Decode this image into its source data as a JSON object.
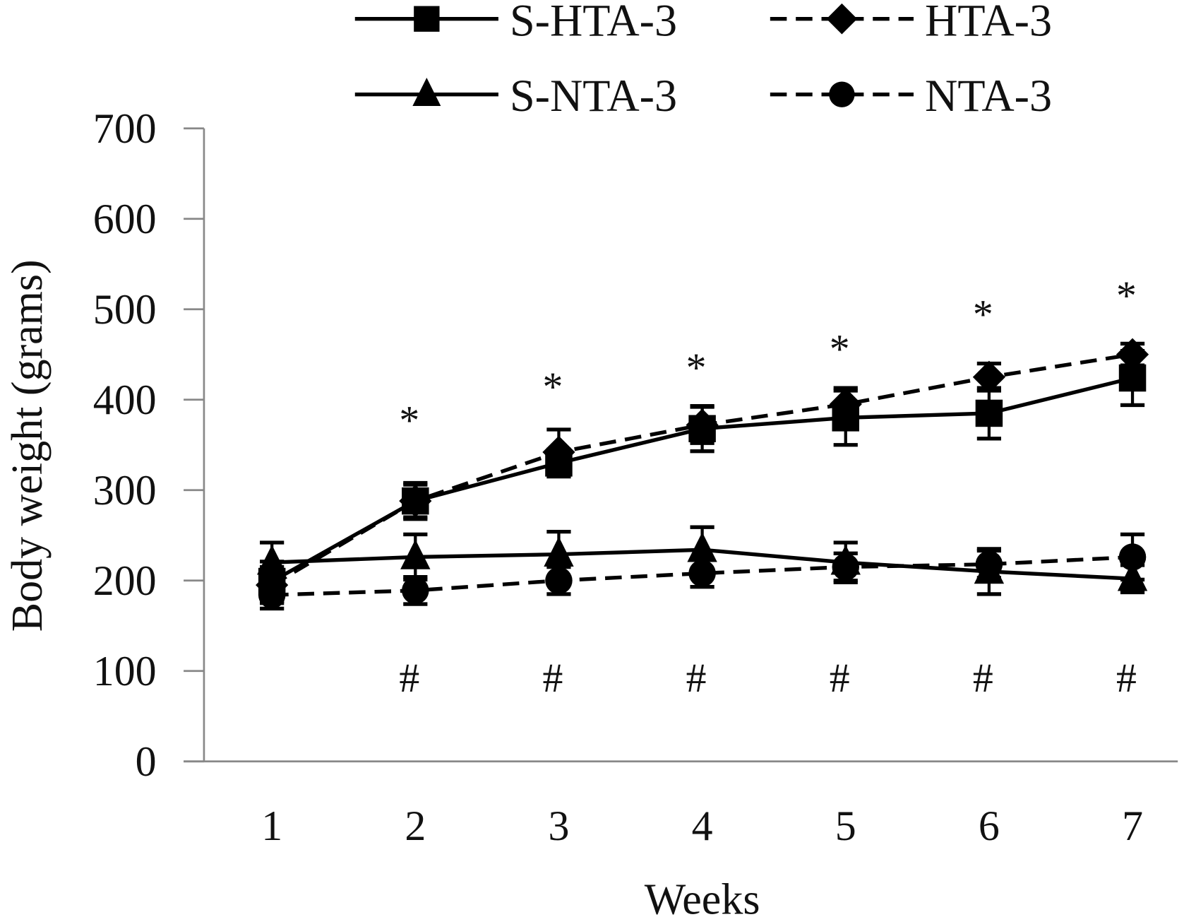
{
  "chart_data": {
    "type": "line",
    "title": "",
    "xlabel": "Weeks",
    "ylabel": "Body weight (grams)",
    "x": [
      1,
      2,
      3,
      4,
      5,
      6,
      7
    ],
    "xticks": [
      "1",
      "2",
      "3",
      "4",
      "5",
      "6",
      "7"
    ],
    "ylim": [
      0,
      700
    ],
    "yticks": [
      "0",
      "100",
      "200",
      "300",
      "400",
      "500",
      "600",
      "700"
    ],
    "grid": false,
    "legend_placement": "top",
    "series": [
      {
        "name": "S-HTA-3",
        "marker": "square",
        "dash": "solid",
        "values": [
          199,
          288,
          330,
          368,
          380,
          385,
          424
        ],
        "error": [
          22,
          20,
          15,
          25,
          30,
          28,
          30
        ]
      },
      {
        "name": "HTA-3",
        "marker": "diamond",
        "dash": "dashed",
        "values": [
          195,
          288,
          342,
          372,
          395,
          425,
          450
        ],
        "error": [
          20,
          18,
          25,
          20,
          18,
          15,
          12
        ]
      },
      {
        "name": "S-NTA-3",
        "marker": "triangle",
        "dash": "solid",
        "values": [
          220,
          226,
          229,
          234,
          220,
          210,
          202
        ],
        "error": [
          22,
          25,
          25,
          25,
          22,
          25,
          15
        ]
      },
      {
        "name": "NTA-3",
        "marker": "circle",
        "dash": "dashed",
        "values": [
          184,
          189,
          200,
          208,
          215,
          218,
          226
        ],
        "error": [
          15,
          15,
          15,
          15,
          15,
          15,
          25
        ]
      }
    ],
    "annotations": [
      {
        "text": "*",
        "x": 2,
        "y": 387
      },
      {
        "text": "*",
        "x": 3,
        "y": 424
      },
      {
        "text": "*",
        "x": 4,
        "y": 445
      },
      {
        "text": "*",
        "x": 5,
        "y": 466
      },
      {
        "text": "*",
        "x": 6,
        "y": 504
      },
      {
        "text": "*",
        "x": 7,
        "y": 525
      },
      {
        "text": "#",
        "x": 2,
        "y": 94
      },
      {
        "text": "#",
        "x": 3,
        "y": 94
      },
      {
        "text": "#",
        "x": 4,
        "y": 94
      },
      {
        "text": "#",
        "x": 5,
        "y": 94
      },
      {
        "text": "#",
        "x": 6,
        "y": 94
      },
      {
        "text": "#",
        "x": 7,
        "y": 94
      }
    ],
    "color": "#000000"
  }
}
